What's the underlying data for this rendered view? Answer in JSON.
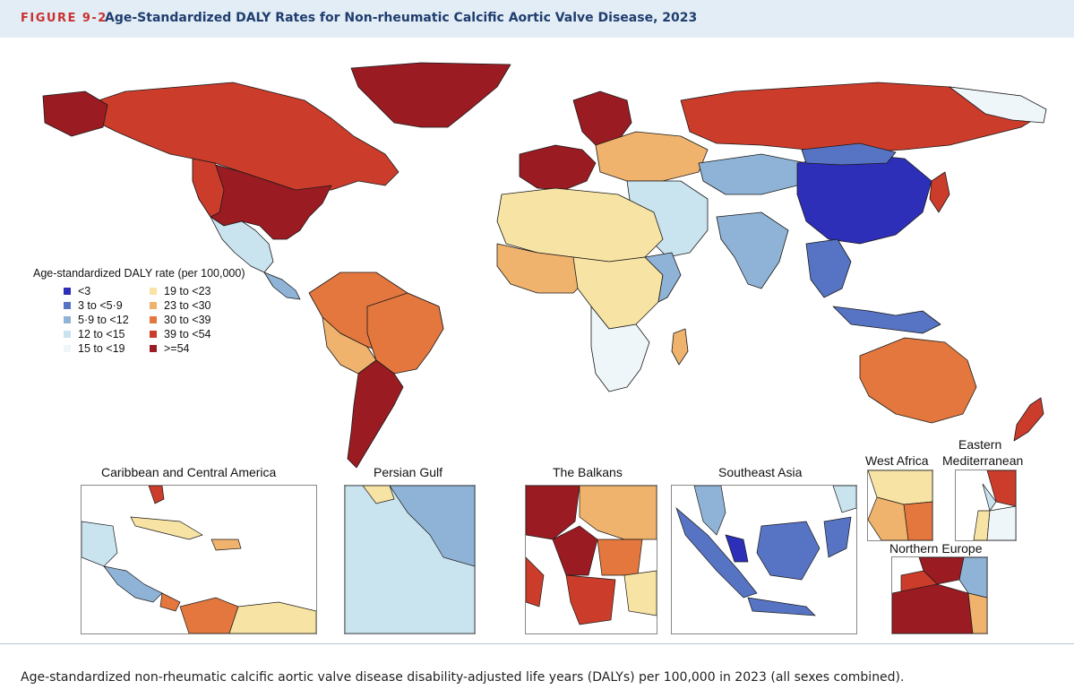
{
  "header": {
    "figure_label": "FIGURE 9-2",
    "title": "Age-Standardized DALY Rates for Non-rheumatic Calcific Aortic Valve Disease, 2023"
  },
  "legend": {
    "title": "Age-standardized DALY rate (per 100,000)",
    "items": [
      {
        "label": "<3",
        "color": "#2d2fb8"
      },
      {
        "label": "3 to <5·9",
        "color": "#5673c4"
      },
      {
        "label": "5·9 to <12",
        "color": "#8fb3d6"
      },
      {
        "label": "12 to <15",
        "color": "#c9e3ef"
      },
      {
        "label": "15 to <19",
        "color": "#eef6fa"
      },
      {
        "label": "19 to <23",
        "color": "#f7e3a3"
      },
      {
        "label": "23 to <30",
        "color": "#f0b36d"
      },
      {
        "label": "30 to <39",
        "color": "#e3773e"
      },
      {
        "label": "39 to <54",
        "color": "#cc3c2b"
      },
      {
        "label": ">=54",
        "color": "#9b1b22"
      }
    ]
  },
  "insets": {
    "caribbean": "Caribbean and Central America",
    "persian_gulf": "Persian Gulf",
    "balkans": "The Balkans",
    "southeast_asia": "Southeast Asia",
    "west_africa": "West Africa",
    "eastern_med_line1": "Eastern",
    "eastern_med_line2": "Mediterranean",
    "northern_europe": "Northern Europe"
  },
  "caption": "Age-standardized non-rheumatic calcific aortic valve disease disability-adjusted life years (DALYs) per 100,000 in 2023 (all sexes combined)."
}
